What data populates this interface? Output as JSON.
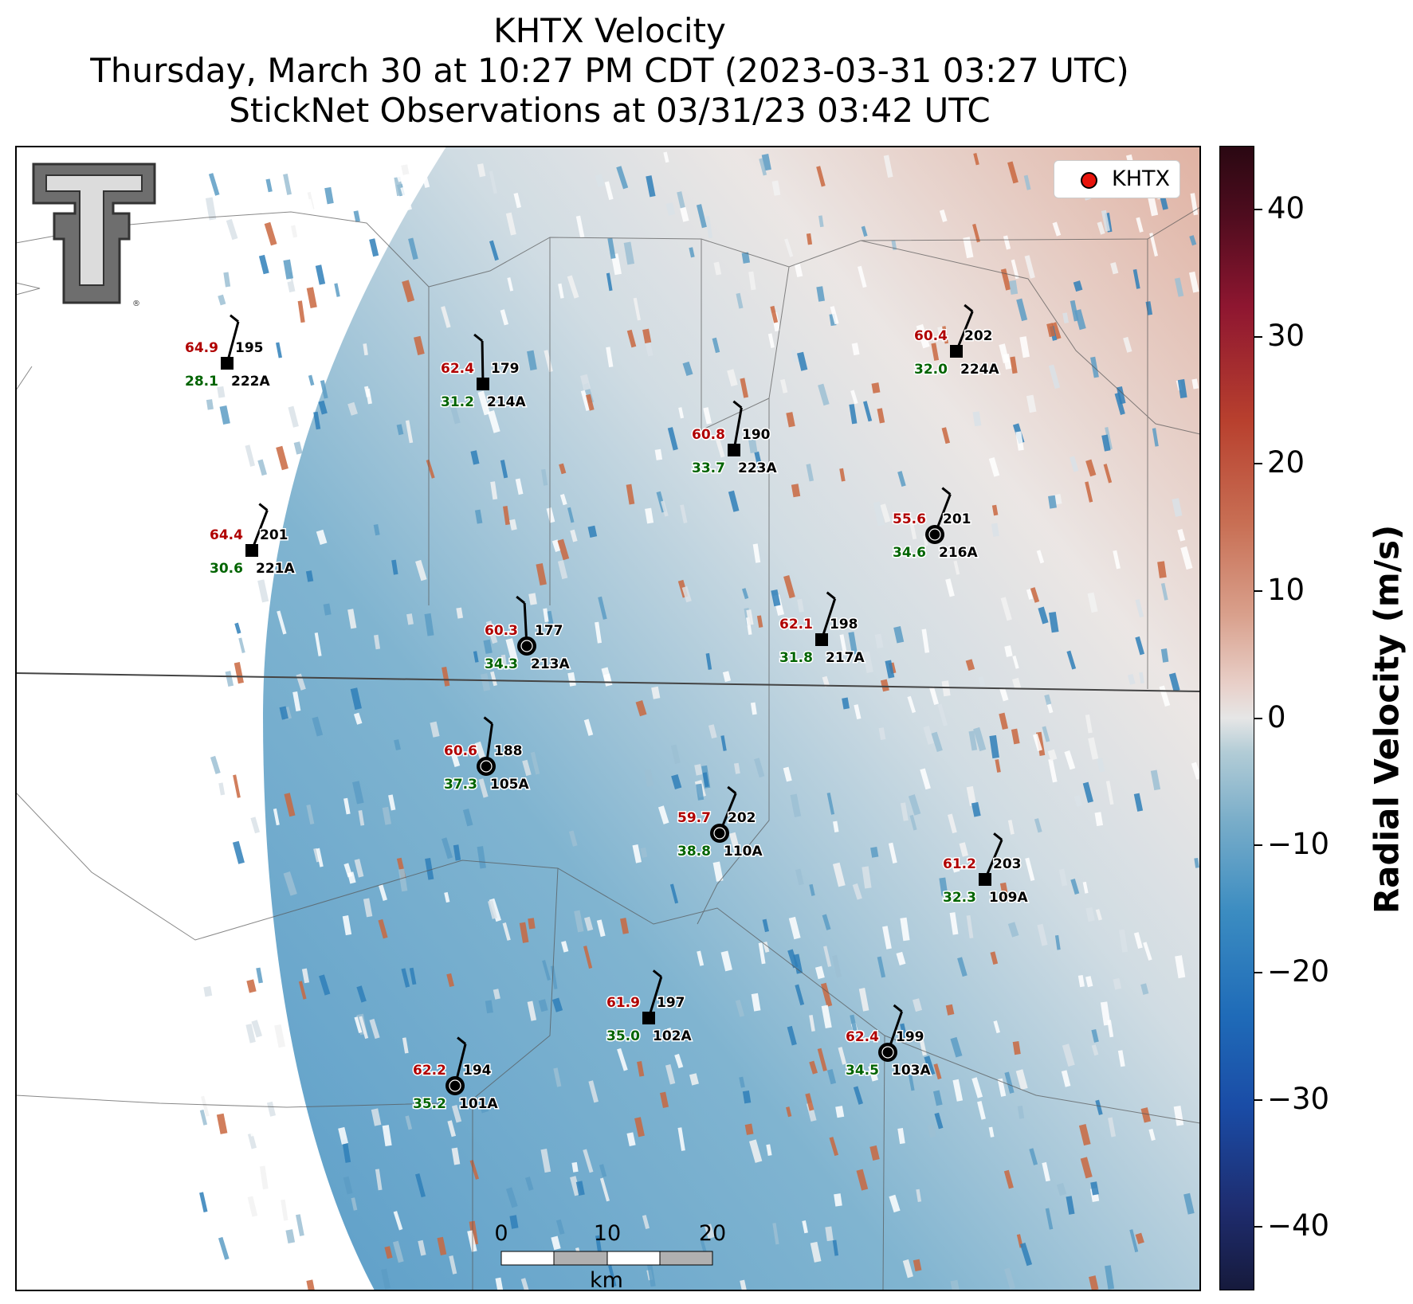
{
  "title_lines": [
    "KHTX Velocity",
    "Thursday, March 30 at 10:27 PM CDT (2023-03-31 03:27 UTC)",
    "StickNet Observations at 03/31/23 03:42 UTC"
  ],
  "legend": {
    "marker_label": "KHTX",
    "marker_color": "#e8140c"
  },
  "colorbar": {
    "label": "Radial Velocity (m/s)",
    "min": -45,
    "max": 45,
    "ticks": [
      "40",
      "30",
      "20",
      "10",
      "0",
      "−10",
      "−20",
      "−30",
      "−40"
    ],
    "tick_values": [
      40,
      30,
      20,
      10,
      0,
      -10,
      -20,
      -30,
      -40
    ]
  },
  "scale_bar": {
    "labels": [
      "0",
      "10",
      "20"
    ],
    "unit": "km"
  },
  "logo": {
    "description": "Texas Tech double-T logo",
    "icon": "texas-tech-logo-icon"
  },
  "stations": [
    {
      "id": "222A",
      "top": "64.9",
      "dir": "195",
      "bottom": "28.1",
      "marker": "square"
    },
    {
      "id": "214A",
      "top": "62.4",
      "dir": "179",
      "bottom": "31.2",
      "marker": "square"
    },
    {
      "id": "224A",
      "top": "60.4",
      "dir": "202",
      "bottom": "32.0",
      "marker": "square"
    },
    {
      "id": "223A",
      "top": "60.8",
      "dir": "190",
      "bottom": "33.7",
      "marker": "square"
    },
    {
      "id": "221A",
      "top": "64.4",
      "dir": "201",
      "bottom": "30.6",
      "marker": "square"
    },
    {
      "id": "216A",
      "top": "55.6",
      "dir": "201",
      "bottom": "34.6",
      "marker": "circle"
    },
    {
      "id": "213A",
      "top": "60.3",
      "dir": "177",
      "bottom": "34.3",
      "marker": "circle"
    },
    {
      "id": "217A",
      "top": "62.1",
      "dir": "198",
      "bottom": "31.8",
      "marker": "square"
    },
    {
      "id": "105A",
      "top": "60.6",
      "dir": "188",
      "bottom": "37.3",
      "marker": "circle"
    },
    {
      "id": "110A",
      "top": "59.7",
      "dir": "202",
      "bottom": "38.8",
      "marker": "circle"
    },
    {
      "id": "109A",
      "top": "61.2",
      "dir": "203",
      "bottom": "32.3",
      "marker": "square"
    },
    {
      "id": "102A",
      "top": "61.9",
      "dir": "197",
      "bottom": "35.0",
      "marker": "square"
    },
    {
      "id": "103A",
      "top": "62.4",
      "dir": "199",
      "bottom": "34.5",
      "marker": "circle"
    },
    {
      "id": "101A",
      "top": "62.2",
      "dir": "194",
      "bottom": "35.2",
      "marker": "circle"
    }
  ],
  "colors": {
    "top_value": "#b00000",
    "bottom_value": "#006400",
    "id_text": "#000000",
    "boundary": "#555555"
  }
}
